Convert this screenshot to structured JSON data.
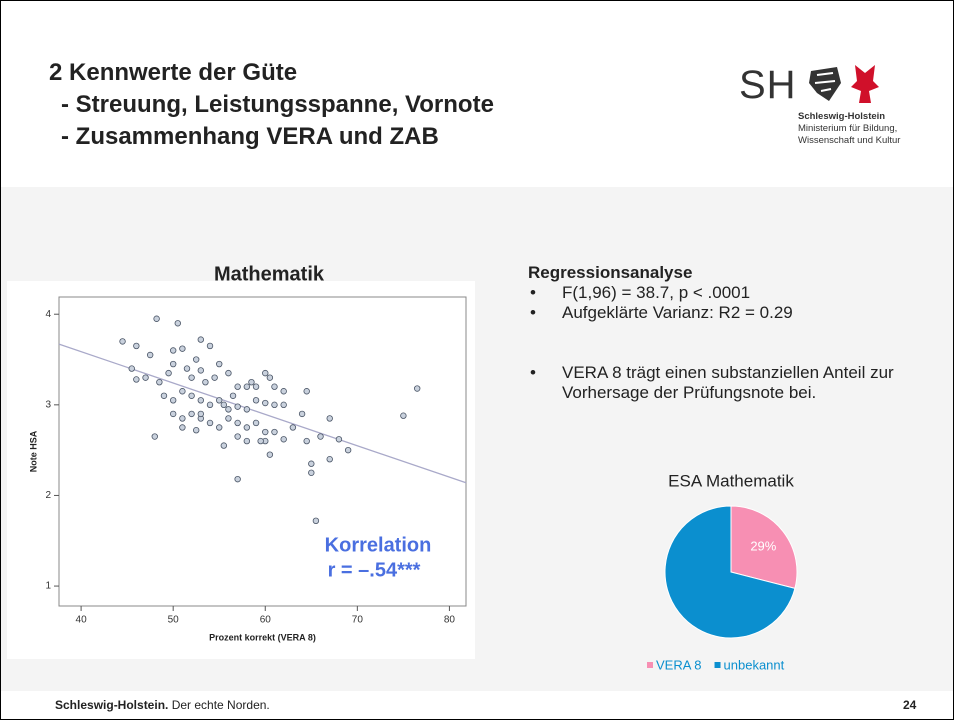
{
  "header": {
    "title": [
      "2 Kennwerte der Güte",
      "- Streuung, Leistungsspanne, Vornote",
      "- Zusammenhang VERA und ZAB"
    ]
  },
  "logo": {
    "mark": "SH",
    "lines": [
      "Schleswig-Holstein",
      "Ministerium für Bildung,",
      "Wissenschaft und Kultur"
    ]
  },
  "regression": {
    "heading": "Regressionsanalyse",
    "bullets": [
      "F(1,96) = 38.7, p < .0001",
      "Aufgeklärte Varianz: R2 = 0.29"
    ],
    "note": "VERA 8 trägt einen substanziellen Anteil zur Vorhersage der Prüfungsnote bei."
  },
  "chart_data": [
    {
      "type": "scatter",
      "title": "Mathematik",
      "x_label": "Prozent korrekt (VERA 8)",
      "y_label": "Note HSA",
      "annotation": [
        "Korrelation",
        "r = –.54***"
      ],
      "xlim": [
        37.6,
        81.8
      ],
      "ylim": [
        0.78,
        4.19
      ],
      "xticks": [
        40,
        50,
        60,
        70,
        80
      ],
      "yticks": [
        1,
        2,
        3,
        4
      ],
      "color": "#c9d1dd",
      "x": [
        48.2,
        50.5,
        44.5,
        46,
        47.5,
        50,
        51,
        53,
        54,
        45.5,
        46,
        47,
        48.5,
        49.5,
        50,
        51.5,
        52,
        52.5,
        53,
        53.5,
        54.5,
        55,
        56,
        57,
        58,
        58.5,
        59,
        60,
        60.5,
        61,
        62,
        64.5,
        49,
        50,
        51,
        52,
        53,
        54,
        55,
        55.5,
        56,
        57,
        58,
        59,
        60,
        61,
        62,
        50,
        51,
        52,
        53,
        54,
        55,
        56,
        57,
        58,
        59,
        60,
        61,
        63,
        64,
        67,
        48,
        51,
        52.5,
        55.5,
        57,
        58,
        60,
        62,
        64.5,
        66,
        68,
        69,
        60.5,
        65,
        67,
        65,
        57,
        65.5,
        75,
        76.5,
        59.5,
        53,
        56.5
      ],
      "y": [
        3.95,
        3.9,
        3.7,
        3.65,
        3.55,
        3.6,
        3.62,
        3.72,
        3.65,
        3.4,
        3.28,
        3.3,
        3.25,
        3.35,
        3.45,
        3.4,
        3.3,
        3.5,
        3.38,
        3.25,
        3.3,
        3.45,
        3.35,
        3.2,
        3.2,
        3.25,
        3.2,
        3.35,
        3.3,
        3.2,
        3.15,
        3.15,
        3.1,
        3.05,
        3.15,
        3.1,
        3.05,
        3.0,
        3.05,
        3.0,
        2.95,
        2.98,
        2.95,
        3.05,
        3.02,
        3.0,
        3.0,
        2.9,
        2.85,
        2.9,
        2.85,
        2.8,
        2.75,
        2.85,
        2.8,
        2.75,
        2.8,
        2.7,
        2.7,
        2.75,
        2.9,
        2.85,
        2.65,
        2.75,
        2.72,
        2.55,
        2.65,
        2.6,
        2.6,
        2.62,
        2.6,
        2.65,
        2.62,
        2.5,
        2.45,
        2.35,
        2.4,
        2.25,
        2.18,
        1.72,
        2.88,
        3.18,
        2.6,
        2.9,
        3.1
      ],
      "trend_line": {
        "x": [
          37.6,
          81.8
        ],
        "y": [
          3.67,
          2.14
        ],
        "color": "#a9a9c9"
      }
    },
    {
      "type": "pie",
      "title": "ESA Mathematik",
      "categories": [
        "VERA 8",
        "unbekannt"
      ],
      "values": [
        29,
        71
      ],
      "value_labels": [
        "29%",
        null
      ],
      "colors": [
        "#f78fb3",
        "#0b8fcf"
      ]
    }
  ],
  "footer": {
    "brand": "Schleswig-Holstein.",
    "claim": " Der echte Norden.",
    "page": "24"
  }
}
